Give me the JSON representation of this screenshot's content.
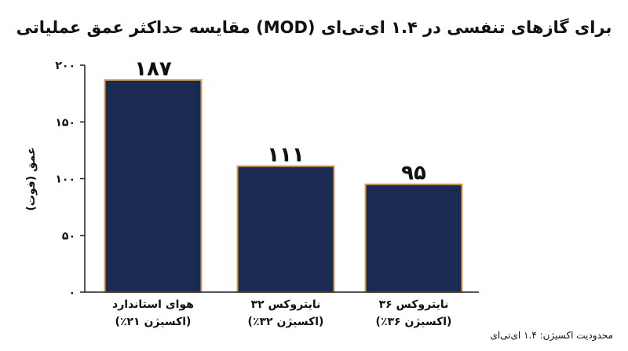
{
  "chart_data": {
    "type": "bar",
    "title": "مقایسه حداکثر عمق عملیاتی (MOD) برای گازهای تنفسی در ۱.۴ ای‌تی‌ای",
    "ylabel": "عمق (فوت)",
    "xlabel": "",
    "ylim": [
      0,
      200
    ],
    "yticks": [
      0,
      50,
      100,
      150,
      200
    ],
    "ytick_labels": [
      "۰",
      "۵۰",
      "۱۰۰",
      "۱۵۰",
      "۲۰۰"
    ],
    "categories": [
      {
        "line1": "هوای استاندارد",
        "line2": "(٪۲۱ اکسیژن)"
      },
      {
        "line1": "نایتروکس ۳۲",
        "line2": "(٪۳۲ اکسیژن)"
      },
      {
        "line1": "نایتروکس ۳۶",
        "line2": "(٪۳۶ اکسیژن)"
      }
    ],
    "values": [
      187,
      111,
      95
    ],
    "value_labels": [
      "۱۸۷",
      "۱۱۱",
      "۹۵"
    ],
    "bar_color": "#1a2a52",
    "bar_edge_color": "#d4a055",
    "axis_color": "#222222",
    "grid": false,
    "footnote": "محدودیت اکسیژن: ۱.۴ ای‌تی‌ای"
  }
}
